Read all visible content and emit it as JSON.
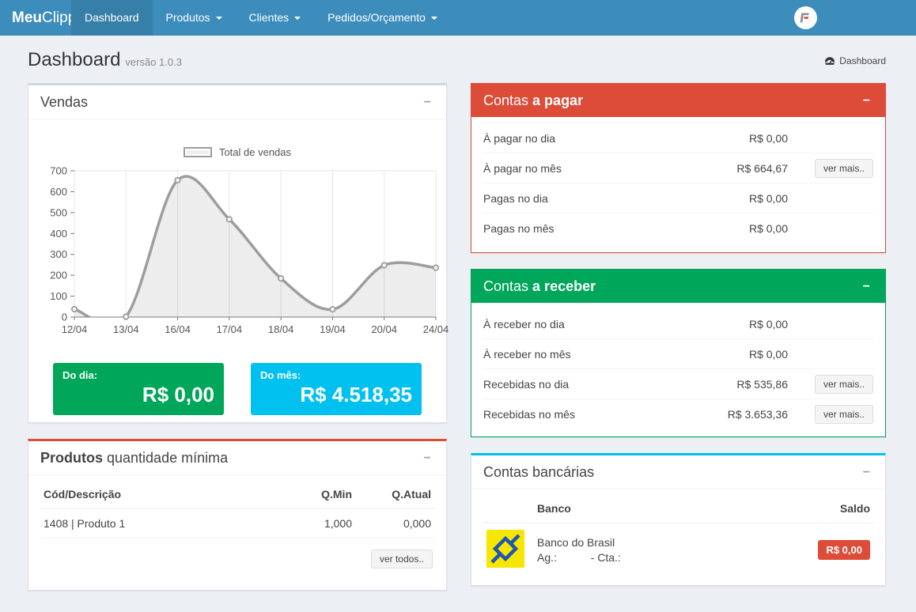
{
  "navbar": {
    "brand_bold": "Meu",
    "brand_rest": "Clipp",
    "items": [
      {
        "label": "Dashboard"
      },
      {
        "label": "Produtos"
      },
      {
        "label": "Clientes"
      },
      {
        "label": "Pedidos/Orçamento"
      }
    ],
    "avatar_letter": "F"
  },
  "header": {
    "title": "Dashboard",
    "subtitle": "versão 1.0.3",
    "breadcrumb": "Dashboard"
  },
  "icons": {
    "collapse": "−"
  },
  "vendas": {
    "title": "Vendas",
    "do_dia_label": "Do dia:",
    "do_dia_value": "R$ 0,00",
    "do_mes_label": "Do mês:",
    "do_mes_value": "R$ 4.518,35",
    "green": "#00a65a",
    "aqua": "#00c0ef"
  },
  "chart_data": {
    "type": "area",
    "title": "Vendas",
    "legend": "Total de vendas",
    "categories": [
      "12/04",
      "13/04",
      "16/04",
      "17/04",
      "18/04",
      "19/04",
      "20/04",
      "24/04"
    ],
    "values": [
      38,
      2,
      655,
      468,
      185,
      37,
      248,
      236
    ],
    "xlabel": "",
    "ylabel": "",
    "ylim": [
      0,
      700
    ],
    "ytick": 100,
    "grid": "vertical",
    "legend_position": "top-center",
    "line_color": "#9d9d9d",
    "fill_color": "rgba(0,0,0,0.07)"
  },
  "contas_pagar": {
    "title_normal": "Contas ",
    "title_bold": "a pagar",
    "accent": "#dd4b39",
    "rows": [
      {
        "label": "À pagar no dia",
        "value": "R$ 0,00",
        "button": ""
      },
      {
        "label": "À pagar no mês",
        "value": "R$ 664,67",
        "button": "ver mais.."
      },
      {
        "label": "Pagas no dia",
        "value": "R$ 0,00",
        "button": ""
      },
      {
        "label": "Pagas no mês",
        "value": "R$ 0,00",
        "button": ""
      }
    ]
  },
  "contas_receber": {
    "title_normal": "Contas ",
    "title_bold": "a receber",
    "accent": "#00a65a",
    "rows": [
      {
        "label": "À receber no dia",
        "value": "R$ 0,00",
        "button": ""
      },
      {
        "label": "À receber no mês",
        "value": "R$ 0,00",
        "button": ""
      },
      {
        "label": "Recebidas no dia",
        "value": "R$ 535,86",
        "button": "ver mais.."
      },
      {
        "label": "Recebidas no mês",
        "value": "R$ 3.653,36",
        "button": "ver mais.."
      }
    ]
  },
  "produtos": {
    "title_bold": "Produtos",
    "title_normal": " quantidade mínima",
    "headers": [
      "Cód/Descrição",
      "Q.Min",
      "Q.Atual"
    ],
    "rows": [
      {
        "descricao": "1408 | Produto 1",
        "qmin": "1,000",
        "qatual": "0,000"
      }
    ],
    "button": "ver todos.."
  },
  "bancarias": {
    "title": "Contas bancárias",
    "headers": [
      "Banco",
      "Saldo"
    ],
    "rows": [
      {
        "banco": "Banco do Brasil",
        "detalhe": "Ag.:           - Cta.:",
        "saldo": "R$ 0,00"
      }
    ]
  }
}
